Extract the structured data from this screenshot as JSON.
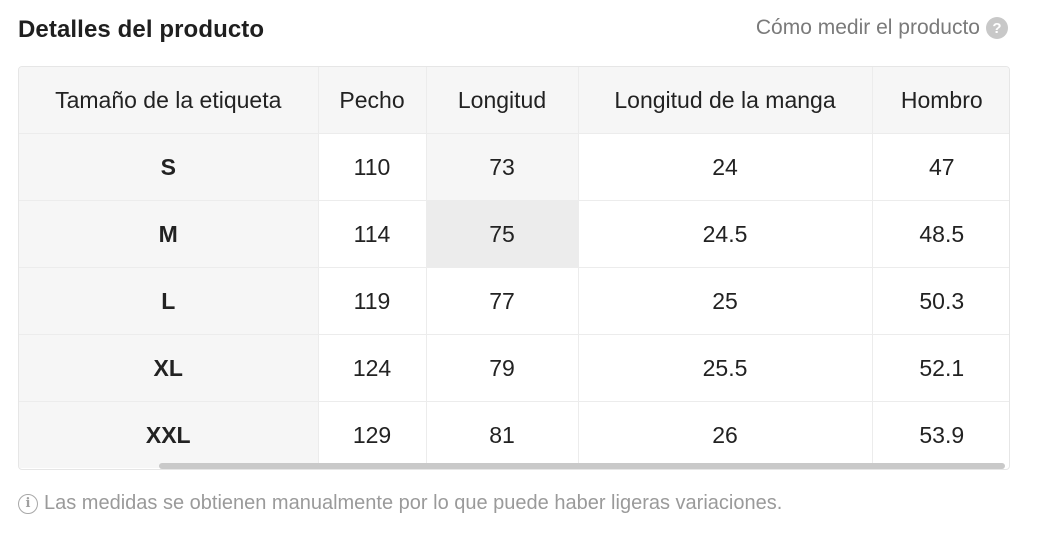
{
  "header": {
    "title": "Detalles del producto",
    "measure_link": "Cómo medir el producto",
    "help_icon": "question-circle-icon",
    "help_glyph": "?"
  },
  "table": {
    "columns": [
      "Tamaño de la etiqueta",
      "Pecho",
      "Longitud",
      "Longitud de la manga",
      "Hombro"
    ],
    "rows": [
      [
        "S",
        "110",
        "73",
        "24",
        "47"
      ],
      [
        "M",
        "114",
        "75",
        "24.5",
        "48.5"
      ],
      [
        "L",
        "119",
        "77",
        "25",
        "50.3"
      ],
      [
        "XL",
        "124",
        "79",
        "25.5",
        "52.1"
      ],
      [
        "XXL",
        "129",
        "81",
        "26",
        "53.9"
      ]
    ]
  },
  "footer": {
    "note": "Las medidas se obtienen manualmente por lo que puede haber ligeras variaciones.",
    "info_icon": "info-circle-icon",
    "info_glyph": "i"
  },
  "colors": {
    "title": "#1f1f1f",
    "link": "#7a7a7a",
    "header_bg": "#f6f6f6",
    "hover_cell": "#ececec",
    "border": "#ececec",
    "note": "#9a9a9a"
  }
}
